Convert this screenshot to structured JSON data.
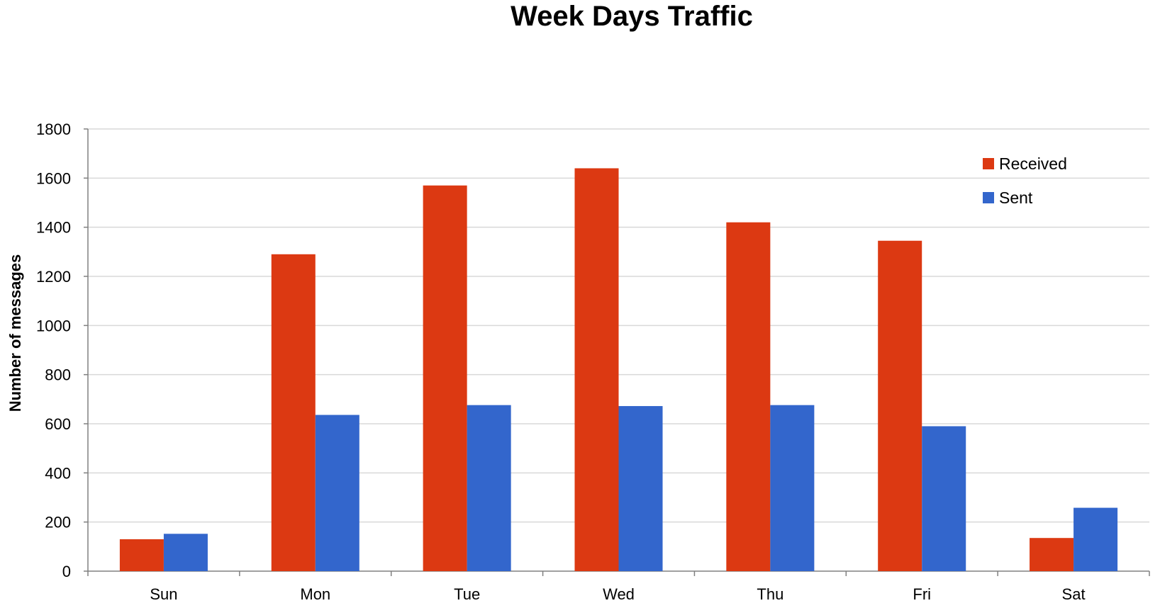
{
  "chart_data": {
    "type": "bar",
    "title": "Week Days Traffic",
    "xlabel": "",
    "ylabel": "Number of messages",
    "categories": [
      "Sun",
      "Mon",
      "Tue",
      "Wed",
      "Thu",
      "Fri",
      "Sat"
    ],
    "series": [
      {
        "name": "Received",
        "color": "#DC3912",
        "values": [
          130,
          1290,
          1570,
          1640,
          1420,
          1345,
          135
        ]
      },
      {
        "name": "Sent",
        "color": "#3366CC",
        "values": [
          152,
          636,
          676,
          672,
          676,
          590,
          258
        ]
      }
    ],
    "ylim": [
      0,
      1800
    ],
    "yticks": [
      "0",
      "200",
      "400",
      "600",
      "800",
      "1000",
      "1200",
      "1400",
      "1600",
      "1800"
    ],
    "grid": true,
    "legend": "top-right"
  }
}
